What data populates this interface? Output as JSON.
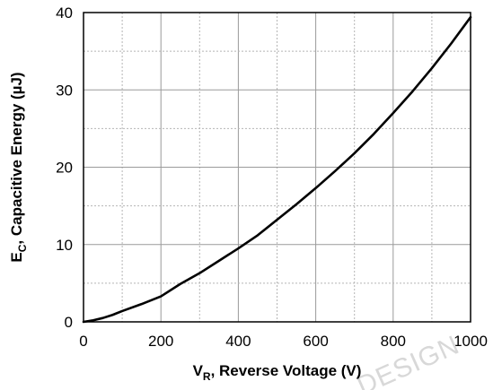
{
  "chart_data": {
    "type": "line",
    "title": "",
    "xlabel": {
      "main": "V",
      "sub": "R",
      "rest": ", Reverse Voltage (V)"
    },
    "ylabel": {
      "main": "E",
      "sub": "C",
      "rest": ", Capacitive Energy (µJ)"
    },
    "xlim": [
      0,
      1000
    ],
    "ylim": [
      0,
      40
    ],
    "x_ticks": [
      "0",
      "200",
      "400",
      "600",
      "800",
      "1000"
    ],
    "y_ticks": [
      "0",
      "10",
      "20",
      "30",
      "40"
    ],
    "grid": true,
    "legend": "none",
    "series": [
      {
        "color": "#000000",
        "x": [
          0,
          25,
          50,
          75,
          100,
          150,
          200,
          250,
          300,
          350,
          400,
          450,
          500,
          550,
          600,
          650,
          700,
          750,
          800,
          850,
          900,
          950,
          1000
        ],
        "y": [
          0,
          0.2,
          0.5,
          0.9,
          1.4,
          2.3,
          3.3,
          4.9,
          6.3,
          7.9,
          9.5,
          11.2,
          13.2,
          15.2,
          17.3,
          19.5,
          21.8,
          24.3,
          27.0,
          29.8,
          32.8,
          36.0,
          39.4
        ]
      }
    ]
  },
  "watermark": {
    "text": "DESIGN",
    "color": "#d8d8d8"
  }
}
